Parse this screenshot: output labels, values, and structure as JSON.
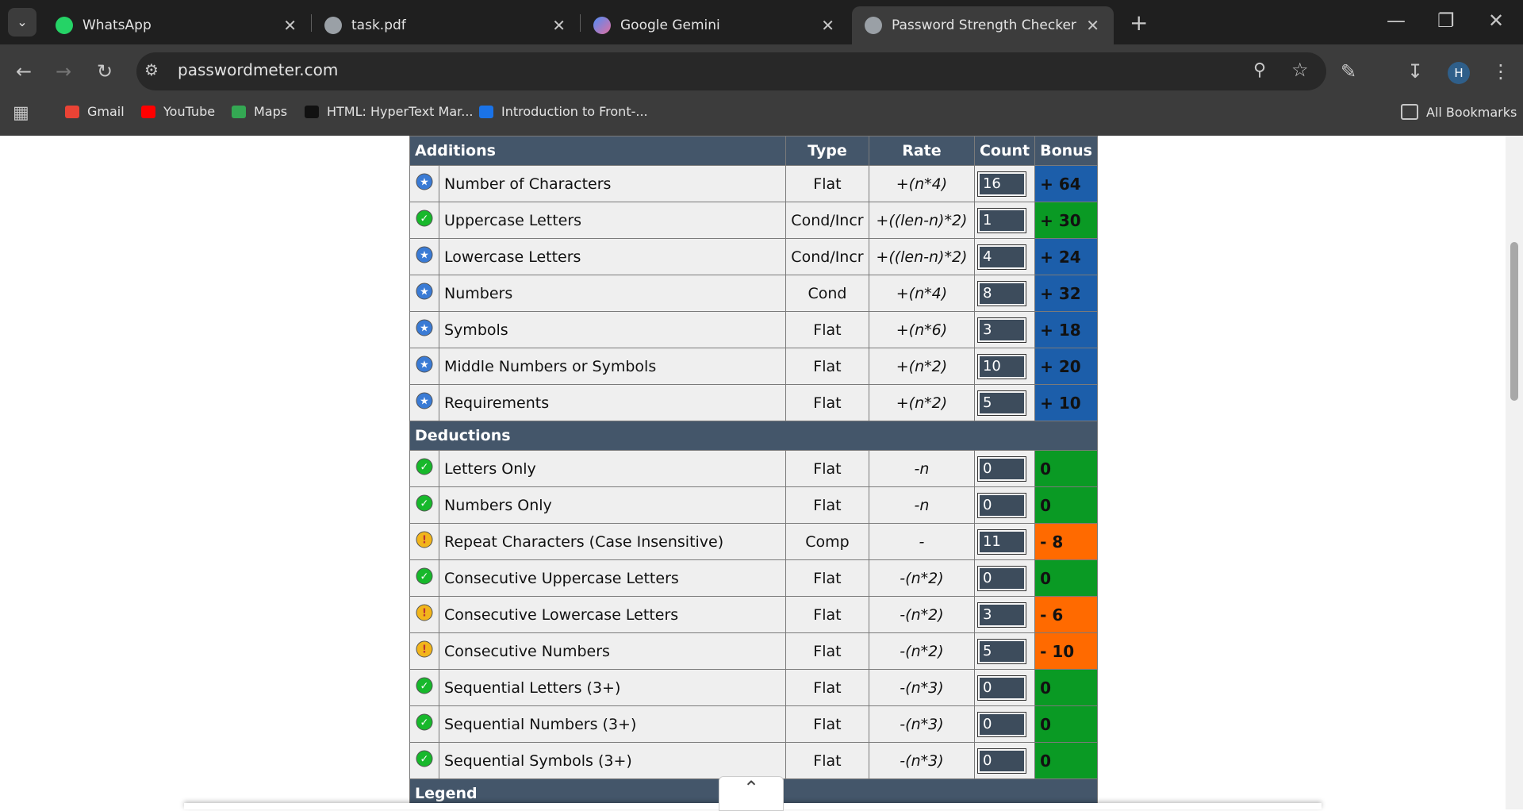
{
  "tabs": [
    {
      "title": "WhatsApp"
    },
    {
      "title": "task.pdf"
    },
    {
      "title": "Google Gemini"
    },
    {
      "title": "Password Strength Checker",
      "active": true
    }
  ],
  "address": "passwordmeter.com",
  "profile": "H",
  "bookmarks": [
    "Gmail",
    "YouTube",
    "Maps",
    "HTML: HyperText Mar...",
    "Introduction to Front-..."
  ],
  "all_bookmarks": "All Bookmarks",
  "table": {
    "header": [
      "Additions",
      "Type",
      "Rate",
      "Count",
      "Bonus"
    ],
    "additions": [
      {
        "name": "Number of Characters",
        "type": "Flat",
        "rate": "+(n*4)",
        "count": 16,
        "bonus": "+ 64",
        "status": "exceed"
      },
      {
        "name": "Uppercase Letters",
        "type": "Cond/Incr",
        "rate": "+((len-n)*2)",
        "count": 1,
        "bonus": "+ 30",
        "status": "sufficient"
      },
      {
        "name": "Lowercase Letters",
        "type": "Cond/Incr",
        "rate": "+((len-n)*2)",
        "count": 4,
        "bonus": "+ 24",
        "status": "exceed"
      },
      {
        "name": "Numbers",
        "type": "Cond",
        "rate": "+(n*4)",
        "count": 8,
        "bonus": "+ 32",
        "status": "exceed"
      },
      {
        "name": "Symbols",
        "type": "Flat",
        "rate": "+(n*6)",
        "count": 3,
        "bonus": "+ 18",
        "status": "exceed"
      },
      {
        "name": "Middle Numbers or Symbols",
        "type": "Flat",
        "rate": "+(n*2)",
        "count": 10,
        "bonus": "+ 20",
        "status": "exceed"
      },
      {
        "name": "Requirements",
        "type": "Flat",
        "rate": "+(n*2)",
        "count": 5,
        "bonus": "+ 10",
        "status": "exceed"
      }
    ],
    "deductions_title": "Deductions",
    "deductions": [
      {
        "name": "Letters Only",
        "type": "Flat",
        "rate": "-n",
        "count": 0,
        "bonus": "0",
        "status": "sufficient"
      },
      {
        "name": "Numbers Only",
        "type": "Flat",
        "rate": "-n",
        "count": 0,
        "bonus": "0",
        "status": "sufficient"
      },
      {
        "name": "Repeat Characters (Case Insensitive)",
        "type": "Comp",
        "rate": "-",
        "count": 11,
        "bonus": "- 8",
        "status": "warning"
      },
      {
        "name": "Consecutive Uppercase Letters",
        "type": "Flat",
        "rate": "-(n*2)",
        "count": 0,
        "bonus": "0",
        "status": "sufficient"
      },
      {
        "name": "Consecutive Lowercase Letters",
        "type": "Flat",
        "rate": "-(n*2)",
        "count": 3,
        "bonus": "- 6",
        "status": "warning"
      },
      {
        "name": "Consecutive Numbers",
        "type": "Flat",
        "rate": "-(n*2)",
        "count": 5,
        "bonus": "- 10",
        "status": "warning"
      },
      {
        "name": "Sequential Letters (3+)",
        "type": "Flat",
        "rate": "-(n*3)",
        "count": 0,
        "bonus": "0",
        "status": "sufficient"
      },
      {
        "name": "Sequential Numbers (3+)",
        "type": "Flat",
        "rate": "-(n*3)",
        "count": 0,
        "bonus": "0",
        "status": "sufficient"
      },
      {
        "name": "Sequential Symbols (3+)",
        "type": "Flat",
        "rate": "-(n*3)",
        "count": 0,
        "bonus": "0",
        "status": "sufficient"
      }
    ],
    "legend_title": "Legend"
  }
}
